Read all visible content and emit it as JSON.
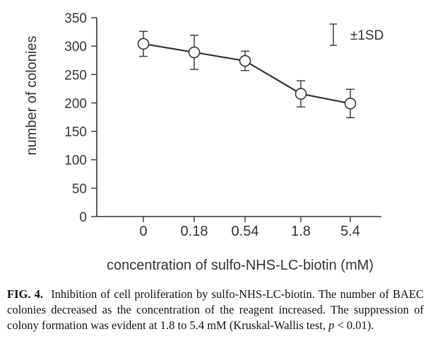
{
  "chart_data": {
    "type": "line",
    "title": "",
    "xlabel": "concentration of sulfo-NHS-LC-biotin (mM)",
    "ylabel": "number of colonies",
    "categories": [
      "0",
      "0.18",
      "0.54",
      "1.8",
      "5.4"
    ],
    "series": [
      {
        "name": "number of colonies",
        "values": [
          304,
          289,
          274,
          216,
          199
        ],
        "error": [
          22,
          30,
          17,
          23,
          25
        ]
      }
    ],
    "ylim": [
      0,
      350
    ],
    "yticks": [
      0,
      50,
      100,
      150,
      200,
      250,
      300,
      350
    ],
    "legend": {
      "label": "±1SD",
      "placement": "top-right"
    },
    "grid": false,
    "colors": {
      "ink": "#333333"
    }
  },
  "caption": {
    "label": "FIG. 4.",
    "text_a": "Inhibition of cell proliferation by sulfo-NHS-LC-biotin. The number of BAEC colonies decreased as the concentration of the reagent increased. The suppression of colony formation was evident at 1.8 to 5.4 mM (Kruskal-Wallis test, ",
    "p_symbol": "p",
    "text_b": " < 0.01)."
  }
}
